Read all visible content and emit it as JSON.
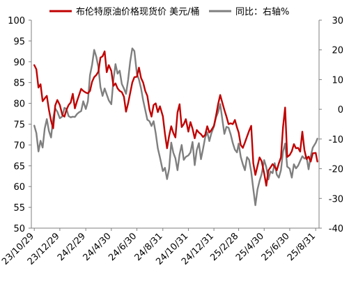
{
  "chart_data": {
    "type": "line",
    "legend_position": "top",
    "grid": false,
    "x_tick_labels": [
      "23/10/29",
      "23/12/29",
      "24/2/29",
      "24/4/30",
      "24/6/30",
      "24/8/31",
      "24/10/31",
      "24/12/31",
      "25/2/28",
      "25/4/30",
      "25/6/30",
      "25/8/31"
    ],
    "x_ticks": [
      "2023-10-29",
      "2023-12-29",
      "2024-02-29",
      "2024-04-30",
      "2024-06-30",
      "2024-08-31",
      "2024-10-31",
      "2024-12-31",
      "2025-02-28",
      "2025-04-30",
      "2025-06-30",
      "2025-08-31"
    ],
    "y_left": {
      "min": 50,
      "max": 100,
      "step": 5,
      "ticks": [
        "50",
        "55",
        "60",
        "65",
        "70",
        "75",
        "80",
        "85",
        "90",
        "95",
        "100"
      ]
    },
    "y_right": {
      "min": -40,
      "max": 30,
      "step": 10,
      "ticks": [
        "-40",
        "-30",
        "-20",
        "-10",
        "0",
        "10",
        "20",
        "30"
      ]
    },
    "series": [
      {
        "name": "布伦特原油价格现货价 美元/桶",
        "axis": "left",
        "color": "#c00000",
        "points": [
          [
            "2023-10-29",
            89.2
          ],
          [
            "2023-11-03",
            88.2
          ],
          [
            "2023-11-08",
            83.8
          ],
          [
            "2023-11-13",
            84.6
          ],
          [
            "2023-11-18",
            80.5
          ],
          [
            "2023-11-23",
            81.2
          ],
          [
            "2023-11-28",
            81.8
          ],
          [
            "2023-12-03",
            78.5
          ],
          [
            "2023-12-08",
            75.8
          ],
          [
            "2023-12-13",
            74.0
          ],
          [
            "2023-12-18",
            79.5
          ],
          [
            "2023-12-23",
            80.8
          ],
          [
            "2023-12-29",
            79.6
          ],
          [
            "2024-01-04",
            77.2
          ],
          [
            "2024-01-09",
            76.8
          ],
          [
            "2024-01-14",
            78.5
          ],
          [
            "2024-01-19",
            79.6
          ],
          [
            "2024-01-24",
            80.2
          ],
          [
            "2024-01-29",
            82.3
          ],
          [
            "2024-02-03",
            78.8
          ],
          [
            "2024-02-08",
            80.5
          ],
          [
            "2024-02-13",
            82.0
          ],
          [
            "2024-02-18",
            83.5
          ],
          [
            "2024-02-23",
            83.0
          ],
          [
            "2024-02-29",
            82.6
          ],
          [
            "2024-03-05",
            82.4
          ],
          [
            "2024-03-10",
            83.0
          ],
          [
            "2024-03-15",
            85.2
          ],
          [
            "2024-03-20",
            86.3
          ],
          [
            "2024-03-25",
            86.8
          ],
          [
            "2024-03-30",
            87.6
          ],
          [
            "2024-04-04",
            91.0
          ],
          [
            "2024-04-09",
            91.3
          ],
          [
            "2024-04-14",
            92.5
          ],
          [
            "2024-04-19",
            87.5
          ],
          [
            "2024-04-24",
            89.2
          ],
          [
            "2024-04-30",
            87.8
          ],
          [
            "2024-05-05",
            84.2
          ],
          [
            "2024-05-10",
            84.8
          ],
          [
            "2024-05-15",
            83.6
          ],
          [
            "2024-05-20",
            83.0
          ],
          [
            "2024-05-25",
            82.7
          ],
          [
            "2024-05-30",
            81.6
          ],
          [
            "2024-06-04",
            78.0
          ],
          [
            "2024-06-09",
            80.0
          ],
          [
            "2024-06-14",
            82.5
          ],
          [
            "2024-06-19",
            85.0
          ],
          [
            "2024-06-24",
            86.3
          ],
          [
            "2024-06-30",
            86.4
          ],
          [
            "2024-07-05",
            88.6
          ],
          [
            "2024-07-10",
            86.1
          ],
          [
            "2024-07-15",
            85.0
          ],
          [
            "2024-07-20",
            83.0
          ],
          [
            "2024-07-25",
            81.8
          ],
          [
            "2024-07-30",
            78.6
          ],
          [
            "2024-08-04",
            76.8
          ],
          [
            "2024-08-09",
            79.6
          ],
          [
            "2024-08-14",
            80.0
          ],
          [
            "2024-08-19",
            77.9
          ],
          [
            "2024-08-24",
            79.3
          ],
          [
            "2024-08-31",
            76.9
          ],
          [
            "2024-09-05",
            72.7
          ],
          [
            "2024-09-10",
            69.2
          ],
          [
            "2024-09-15",
            72.2
          ],
          [
            "2024-09-20",
            74.5
          ],
          [
            "2024-09-25",
            72.9
          ],
          [
            "2024-09-30",
            71.8
          ],
          [
            "2024-10-05",
            77.8
          ],
          [
            "2024-10-10",
            79.8
          ],
          [
            "2024-10-15",
            74.3
          ],
          [
            "2024-10-20",
            75.0
          ],
          [
            "2024-10-25",
            76.2
          ],
          [
            "2024-10-31",
            73.2
          ],
          [
            "2024-11-05",
            75.5
          ],
          [
            "2024-11-10",
            73.9
          ],
          [
            "2024-11-15",
            71.6
          ],
          [
            "2024-11-20",
            73.6
          ],
          [
            "2024-11-25",
            73.0
          ],
          [
            "2024-11-30",
            72.6
          ],
          [
            "2024-12-05",
            71.9
          ],
          [
            "2024-12-10",
            72.4
          ],
          [
            "2024-12-15",
            74.5
          ],
          [
            "2024-12-20",
            73.0
          ],
          [
            "2024-12-25",
            73.6
          ],
          [
            "2024-12-31",
            74.6
          ],
          [
            "2025-01-05",
            77.0
          ],
          [
            "2025-01-10",
            79.8
          ],
          [
            "2025-01-15",
            82.0
          ],
          [
            "2025-01-20",
            80.2
          ],
          [
            "2025-01-25",
            78.4
          ],
          [
            "2025-01-30",
            76.8
          ],
          [
            "2025-02-04",
            75.0
          ],
          [
            "2025-02-09",
            75.2
          ],
          [
            "2025-02-14",
            75.0
          ],
          [
            "2025-02-19",
            76.0
          ],
          [
            "2025-02-24",
            74.2
          ],
          [
            "2025-02-28",
            73.0
          ],
          [
            "2025-03-05",
            70.0
          ],
          [
            "2025-03-10",
            69.3
          ],
          [
            "2025-03-15",
            70.6
          ],
          [
            "2025-03-20",
            72.0
          ],
          [
            "2025-03-25",
            73.4
          ],
          [
            "2025-03-30",
            74.6
          ],
          [
            "2025-04-04",
            65.6
          ],
          [
            "2025-04-09",
            62.8
          ],
          [
            "2025-04-14",
            64.9
          ],
          [
            "2025-04-19",
            67.0
          ],
          [
            "2025-04-24",
            66.1
          ],
          [
            "2025-04-30",
            63.2
          ],
          [
            "2025-05-05",
            60.2
          ],
          [
            "2025-05-10",
            63.9
          ],
          [
            "2025-05-15",
            64.6
          ],
          [
            "2025-05-20",
            65.4
          ],
          [
            "2025-05-25",
            64.8
          ],
          [
            "2025-05-30",
            63.9
          ],
          [
            "2025-06-04",
            65.6
          ],
          [
            "2025-06-09",
            67.0
          ],
          [
            "2025-06-14",
            74.3
          ],
          [
            "2025-06-19",
            79.0
          ],
          [
            "2025-06-24",
            67.1
          ],
          [
            "2025-06-30",
            67.6
          ],
          [
            "2025-07-05",
            68.5
          ],
          [
            "2025-07-10",
            70.2
          ],
          [
            "2025-07-15",
            69.2
          ],
          [
            "2025-07-20",
            69.3
          ],
          [
            "2025-07-25",
            68.4
          ],
          [
            "2025-07-30",
            73.2
          ],
          [
            "2025-08-04",
            68.8
          ],
          [
            "2025-08-09",
            66.6
          ],
          [
            "2025-08-14",
            67.2
          ],
          [
            "2025-08-19",
            66.0
          ],
          [
            "2025-08-24",
            68.0
          ],
          [
            "2025-08-31",
            68.1
          ],
          [
            "2025-09-04",
            66.0
          ]
        ]
      },
      {
        "name": "同比：右轴%",
        "axis": "right",
        "color": "#7f7f7f",
        "points": [
          [
            "2023-10-29",
            -5.5
          ],
          [
            "2023-11-03",
            -8.0
          ],
          [
            "2023-11-08",
            -14.2
          ],
          [
            "2023-11-13",
            -10.6
          ],
          [
            "2023-11-18",
            -12.9
          ],
          [
            "2023-11-23",
            -6.5
          ],
          [
            "2023-11-28",
            -3.3
          ],
          [
            "2023-12-03",
            -7.3
          ],
          [
            "2023-12-08",
            -9.5
          ],
          [
            "2023-12-13",
            -3.0
          ],
          [
            "2023-12-18",
            0.3
          ],
          [
            "2023-12-23",
            -0.8
          ],
          [
            "2023-12-29",
            -3.0
          ],
          [
            "2024-01-04",
            -2.4
          ],
          [
            "2024-01-09",
            0.5
          ],
          [
            "2024-01-14",
            0.1
          ],
          [
            "2024-01-19",
            -2.3
          ],
          [
            "2024-01-24",
            -2.7
          ],
          [
            "2024-01-29",
            -2.5
          ],
          [
            "2024-02-03",
            -2.6
          ],
          [
            "2024-02-08",
            -1.6
          ],
          [
            "2024-02-13",
            -1.0
          ],
          [
            "2024-02-18",
            -0.6
          ],
          [
            "2024-02-23",
            2.7
          ],
          [
            "2024-02-29",
            0.1
          ],
          [
            "2024-03-05",
            2.7
          ],
          [
            "2024-03-10",
            11.5
          ],
          [
            "2024-03-15",
            15.0
          ],
          [
            "2024-03-20",
            20.0
          ],
          [
            "2024-03-25",
            17.7
          ],
          [
            "2024-03-30",
            14.2
          ],
          [
            "2024-04-04",
            7.5
          ],
          [
            "2024-04-09",
            4.5
          ],
          [
            "2024-04-14",
            7.0
          ],
          [
            "2024-04-19",
            5.0
          ],
          [
            "2024-04-24",
            3.0
          ],
          [
            "2024-04-30",
            1.7
          ],
          [
            "2024-05-05",
            9.8
          ],
          [
            "2024-05-10",
            15.2
          ],
          [
            "2024-05-15",
            12.0
          ],
          [
            "2024-05-20",
            13.0
          ],
          [
            "2024-05-25",
            8.5
          ],
          [
            "2024-05-30",
            7.0
          ],
          [
            "2024-06-04",
            5.2
          ],
          [
            "2024-06-09",
            9.9
          ],
          [
            "2024-06-14",
            16.1
          ],
          [
            "2024-06-19",
            20.5
          ],
          [
            "2024-06-24",
            19.6
          ],
          [
            "2024-06-30",
            12.0
          ],
          [
            "2024-07-05",
            10.0
          ],
          [
            "2024-07-10",
            7.0
          ],
          [
            "2024-07-15",
            3.0
          ],
          [
            "2024-07-20",
            -0.2
          ],
          [
            "2024-07-25",
            -3.5
          ],
          [
            "2024-07-30",
            -4.0
          ],
          [
            "2024-08-04",
            -5.6
          ],
          [
            "2024-08-09",
            -4.0
          ],
          [
            "2024-08-14",
            -8.0
          ],
          [
            "2024-08-19",
            -13.2
          ],
          [
            "2024-08-24",
            -16.2
          ],
          [
            "2024-08-31",
            -20.8
          ],
          [
            "2024-09-05",
            -19.7
          ],
          [
            "2024-09-10",
            -23.5
          ],
          [
            "2024-09-15",
            -20.0
          ],
          [
            "2024-09-20",
            -11.2
          ],
          [
            "2024-09-25",
            -14.6
          ],
          [
            "2024-09-30",
            -16.5
          ],
          [
            "2024-10-05",
            -20.5
          ],
          [
            "2024-10-10",
            -15.2
          ],
          [
            "2024-10-15",
            -12.0
          ],
          [
            "2024-10-20",
            -17.0
          ],
          [
            "2024-10-25",
            -16.0
          ],
          [
            "2024-10-31",
            -15.5
          ],
          [
            "2024-11-05",
            -14.5
          ],
          [
            "2024-11-10",
            -11.0
          ],
          [
            "2024-11-15",
            -18.8
          ],
          [
            "2024-11-20",
            -13.7
          ],
          [
            "2024-11-25",
            -11.4
          ],
          [
            "2024-11-30",
            -16.8
          ],
          [
            "2024-12-05",
            -13.3
          ],
          [
            "2024-12-10",
            -9.5
          ],
          [
            "2024-12-15",
            -7.7
          ],
          [
            "2024-12-20",
            -10.7
          ],
          [
            "2024-12-25",
            -8.0
          ],
          [
            "2024-12-31",
            -5.8
          ],
          [
            "2025-01-05",
            -2.7
          ],
          [
            "2025-01-10",
            -1.0
          ],
          [
            "2025-01-15",
            1.8
          ],
          [
            "2025-01-20",
            -3.3
          ],
          [
            "2025-01-25",
            -8.3
          ],
          [
            "2025-01-30",
            -5.9
          ],
          [
            "2025-02-04",
            -6.2
          ],
          [
            "2025-02-09",
            -8.5
          ],
          [
            "2025-02-14",
            -11.4
          ],
          [
            "2025-02-19",
            -13.6
          ],
          [
            "2025-02-24",
            -14.5
          ],
          [
            "2025-02-28",
            -11.5
          ],
          [
            "2025-03-05",
            -16.0
          ],
          [
            "2025-03-10",
            -18.5
          ],
          [
            "2025-03-15",
            -20.5
          ],
          [
            "2025-03-20",
            -16.1
          ],
          [
            "2025-03-25",
            -17.0
          ],
          [
            "2025-03-30",
            -21.0
          ],
          [
            "2025-04-04",
            -26.8
          ],
          [
            "2025-04-09",
            -32.3
          ],
          [
            "2025-04-14",
            -27.0
          ],
          [
            "2025-04-19",
            -24.1
          ],
          [
            "2025-04-24",
            -21.8
          ],
          [
            "2025-04-30",
            -17.1
          ],
          [
            "2025-05-05",
            -19.5
          ],
          [
            "2025-05-10",
            -23.6
          ],
          [
            "2025-05-15",
            -20.9
          ],
          [
            "2025-05-20",
            -21.5
          ],
          [
            "2025-05-25",
            -18.1
          ],
          [
            "2025-05-30",
            -22.0
          ],
          [
            "2025-06-04",
            -23.0
          ],
          [
            "2025-06-09",
            -20.5
          ],
          [
            "2025-06-14",
            -14.2
          ],
          [
            "2025-06-19",
            -11.5
          ],
          [
            "2025-06-24",
            -19.3
          ],
          [
            "2025-06-30",
            -20.0
          ],
          [
            "2025-07-05",
            -23.0
          ],
          [
            "2025-07-10",
            -18.5
          ],
          [
            "2025-07-15",
            -19.9
          ],
          [
            "2025-07-20",
            -19.0
          ],
          [
            "2025-07-25",
            -17.4
          ],
          [
            "2025-07-30",
            -15.8
          ],
          [
            "2025-08-04",
            -16.6
          ],
          [
            "2025-08-09",
            -16.0
          ],
          [
            "2025-08-14",
            -20.2
          ],
          [
            "2025-08-19",
            -15.8
          ],
          [
            "2025-08-24",
            -12.9
          ],
          [
            "2025-08-31",
            -11.3
          ],
          [
            "2025-09-04",
            -9.9
          ]
        ]
      }
    ]
  }
}
